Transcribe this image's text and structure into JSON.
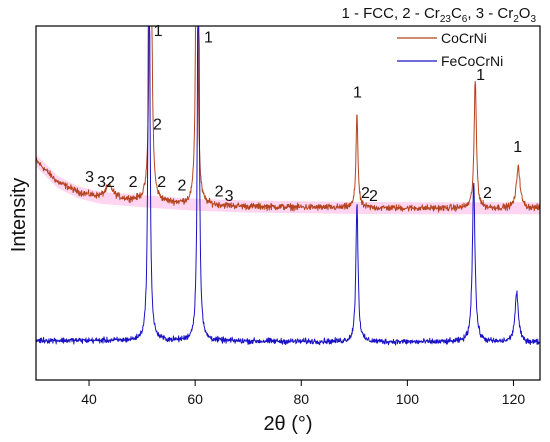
{
  "chart_data": {
    "type": "line",
    "title": "1 - FCC, 2 - Cr23C6, 3 - Cr2O3",
    "xlabel": "2θ (°)",
    "ylabel": "Intensity",
    "xlim": [
      30,
      125
    ],
    "ylim": [
      0,
      100
    ],
    "x_ticks": [
      40,
      60,
      80,
      100,
      120
    ],
    "y_ticks": [],
    "grid": false,
    "legend_position": "top-right",
    "colors": {
      "CoCrNi": "#b4441f",
      "FeCoCrNi": "#1a12c4",
      "axis": "#000000",
      "band": "#ff88d8"
    },
    "series": [
      {
        "name": "CoCrNi",
        "baseline": [
          [
            30,
            62.0
          ],
          [
            34,
            56.0
          ],
          [
            38,
            53.0
          ],
          [
            42,
            51.5
          ],
          [
            46,
            51.0
          ],
          [
            50,
            50.5
          ],
          [
            60,
            49.5
          ],
          [
            70,
            49.0
          ],
          [
            90,
            48.6
          ],
          [
            110,
            48.5
          ],
          [
            125,
            48.5
          ]
        ],
        "peaks": [
          {
            "x": 43.8,
            "height": 3.5,
            "width": 0.9
          },
          {
            "x": 51.6,
            "height": 150,
            "width": 0.2
          },
          {
            "x": 60.3,
            "height": 120,
            "width": 0.2
          },
          {
            "x": 90.5,
            "height": 27,
            "width": 0.22
          },
          {
            "x": 112.8,
            "height": 36,
            "width": 0.26
          },
          {
            "x": 120.9,
            "height": 12,
            "width": 0.4
          }
        ]
      },
      {
        "name": "FeCoCrNi",
        "baseline": [
          [
            30,
            11.2
          ],
          [
            125,
            10.6
          ]
        ],
        "peaks": [
          {
            "x": 51.3,
            "height": 130,
            "width": 0.2
          },
          {
            "x": 60.6,
            "height": 125,
            "width": 0.2
          },
          {
            "x": 90.5,
            "height": 39,
            "width": 0.25
          },
          {
            "x": 112.5,
            "height": 45,
            "width": 0.3
          },
          {
            "x": 120.6,
            "height": 14,
            "width": 0.38
          }
        ]
      }
    ],
    "annotations": [
      {
        "text": "3",
        "x": 40.1,
        "y": 56.0
      },
      {
        "text": "32",
        "x": 43.2,
        "y": 54.5
      },
      {
        "text": "2",
        "x": 48.3,
        "y": 54.5
      },
      {
        "text": "1",
        "x": 53.0,
        "y": 97.2
      },
      {
        "text": "2",
        "x": 52.9,
        "y": 70.7
      },
      {
        "text": "2",
        "x": 53.7,
        "y": 54.5
      },
      {
        "text": "2",
        "x": 57.5,
        "y": 53.5
      },
      {
        "text": "1",
        "x": 62.5,
        "y": 95.3
      },
      {
        "text": "2",
        "x": 64.5,
        "y": 51.8
      },
      {
        "text": "3",
        "x": 66.4,
        "y": 50.5
      },
      {
        "text": "1",
        "x": 90.6,
        "y": 79.8
      },
      {
        "text": "2",
        "x": 92.1,
        "y": 51.4
      },
      {
        "text": "2",
        "x": 93.6,
        "y": 50.5
      },
      {
        "text": "1",
        "x": 113.8,
        "y": 84.7
      },
      {
        "text": "2",
        "x": 115.1,
        "y": 51.4
      },
      {
        "text": "1",
        "x": 120.8,
        "y": 64.4
      }
    ]
  }
}
